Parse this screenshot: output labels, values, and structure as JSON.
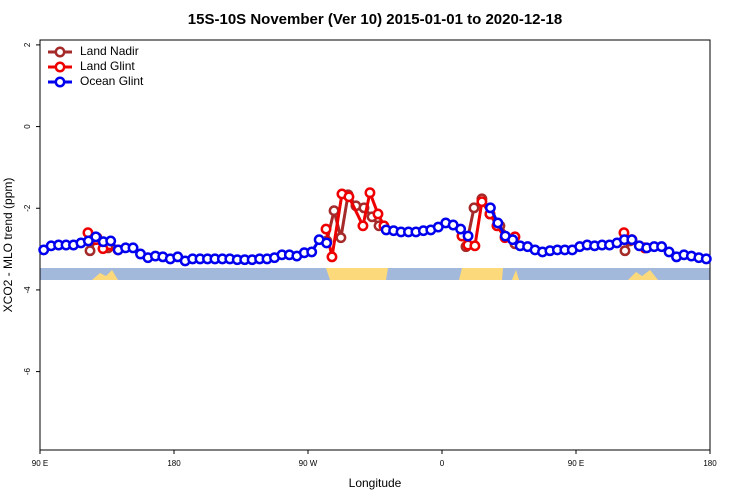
{
  "chart_data": {
    "type": "line",
    "title": "15S-10S November (Ver 10)   2015-01-01 to 2020-12-18",
    "xlabel": "Longitude",
    "ylabel": "XCO2 - MLO trend (ppm)",
    "xlim": [
      90,
      540
    ],
    "ylim": [
      -7.92,
      2.12
    ],
    "xticks": [
      {
        "value": 90,
        "label": "90 E"
      },
      180,
      {
        "value": 270,
        "label": "90 W"
      },
      {
        "value": 360,
        "label": "0"
      },
      {
        "value": 450,
        "label": "90 E"
      },
      {
        "value": 540,
        "label": "180"
      }
    ],
    "yticks": [
      -6,
      -4,
      -2,
      0,
      2
    ],
    "legend": "top-left",
    "series": [
      {
        "name": "Land Nadir",
        "color": "#a52a2a",
        "x": [
          123.6,
          128.3,
          135.7,
          200,
          282.7,
          287.5,
          292.1,
          296.9,
          302.2,
          307.6,
          313.0,
          317.7,
          350,
          376.1,
          381.5,
          386.8,
          392.2,
          398.9,
          409.0,
          450,
          482.9,
          486.2,
          496.3
        ],
        "values": [
          -3.04,
          -2.72,
          -2.97,
          null,
          -2.8,
          -2.06,
          -2.72,
          -1.67,
          -1.94,
          -1.99,
          -2.21,
          -2.43,
          null,
          -2.94,
          -1.99,
          -1.77,
          -2.14,
          -2.43,
          -2.87,
          null,
          -3.04,
          -2.8,
          -2.97
        ]
      },
      {
        "name": "Land Glint",
        "color": "#ee0000",
        "x": [
          122.2,
          127.6,
          132.3,
          142.4,
          200,
          282.1,
          286.1,
          292.8,
          297.5,
          306.9,
          311.6,
          317.0,
          321.0,
          350,
          373.4,
          377.4,
          382.1,
          386.8,
          392.2,
          396.9,
          402.3,
          409.0,
          450,
          482.2,
          487.6,
          496.3
        ],
        "values": [
          -2.6,
          -2.77,
          -2.99,
          -3.02,
          null,
          -2.51,
          -3.19,
          -1.65,
          -1.72,
          -2.43,
          -1.62,
          -2.14,
          -2.43,
          null,
          -2.68,
          -2.9,
          -2.92,
          -1.84,
          -2.14,
          -2.43,
          -2.72,
          -2.7,
          null,
          -2.6,
          -2.77,
          -2.97
        ]
      },
      {
        "name": "Ocean Glint",
        "color": "#0000ee",
        "x": [
          92.5,
          97.5,
          102.5,
          107.5,
          112.5,
          117.5,
          122.5,
          127.5,
          132.5,
          137.5,
          142.5,
          147.5,
          152.5,
          157.5,
          162.5,
          167.5,
          172.5,
          177.5,
          182.5,
          187.5,
          192.5,
          197.5,
          202.5,
          207.5,
          212.5,
          217.5,
          222.5,
          227.5,
          232.5,
          237.5,
          242.5,
          247.5,
          252.5,
          257.5,
          262.5,
          267.5,
          272.5,
          277.5,
          282.5,
          287.5,
          292.5,
          297.5,
          302.5,
          307.5,
          312.5,
          317.5,
          322.5,
          327.5,
          332.5,
          337.5,
          342.5,
          347.5,
          352.5,
          357.5,
          362.5,
          367.5,
          372.5,
          377.5,
          382.5,
          387.5,
          392.5,
          397.5,
          402.5,
          407.5,
          412.5,
          417.5,
          422.5,
          427.5,
          432.5,
          437.5,
          442.5,
          447.5,
          452.5,
          457.5,
          462.5,
          467.5,
          472.5,
          477.5,
          482.5,
          487.5,
          492.5,
          497.5,
          502.5,
          507.5,
          512.5,
          517.5,
          522.5,
          527.5,
          532.5,
          537.5
        ],
        "values": [
          -3.02,
          -2.92,
          -2.9,
          -2.9,
          -2.9,
          -2.85,
          -2.8,
          -2.7,
          -2.82,
          -2.8,
          -3.02,
          -2.97,
          -2.97,
          -3.12,
          -3.21,
          -3.17,
          -3.19,
          -3.24,
          -3.19,
          -3.29,
          -3.24,
          -3.24,
          -3.24,
          -3.24,
          -3.24,
          -3.24,
          -3.26,
          -3.26,
          -3.26,
          -3.24,
          -3.24,
          -3.21,
          -3.14,
          -3.14,
          -3.17,
          -3.09,
          -3.07,
          -2.77,
          -2.85,
          null,
          null,
          null,
          null,
          null,
          null,
          null,
          -2.53,
          -2.55,
          -2.58,
          -2.58,
          -2.58,
          -2.55,
          -2.53,
          -2.46,
          -2.36,
          -2.41,
          -2.51,
          -2.68,
          null,
          null,
          -1.99,
          -2.36,
          -2.68,
          -2.77,
          -2.92,
          -2.94,
          -3.02,
          -3.07,
          -3.04,
          -3.02,
          -3.02,
          -3.02,
          -2.94,
          -2.9,
          -2.92,
          -2.9,
          -2.9,
          -2.85,
          -2.77,
          -2.77,
          -2.92,
          -2.97,
          -2.94,
          -2.94,
          -3.07,
          -3.19,
          -3.14,
          -3.17,
          -3.21,
          -3.24
        ]
      }
    ]
  }
}
